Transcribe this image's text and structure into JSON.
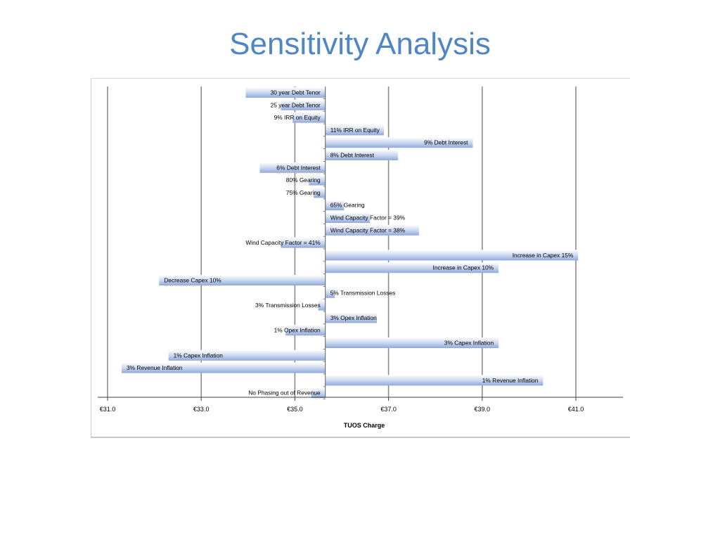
{
  "page": {
    "title": "Sensitivity Analysis"
  },
  "colors": {
    "title": "#4f86c6",
    "bar_dark": "#8fa9d9",
    "bar_light": "#ffffff",
    "gridline": "#8c8c8c",
    "axis": "#404040"
  },
  "chart_data": {
    "type": "bar",
    "orientation": "horizontal",
    "base_value": 35.65,
    "xlabel": "TUOS Charge",
    "xlim": [
      31.0,
      42.0
    ],
    "xticks": [
      "€31.0",
      "€33.0",
      "€35.0",
      "€37.0",
      "€39.0",
      "€41.0"
    ],
    "xtick_values": [
      31,
      33,
      35,
      37,
      39,
      41
    ],
    "grid": true,
    "bars": [
      {
        "label": "30 year Debt Tenor",
        "value": 33.95
      },
      {
        "label": "25 year Debt Tenor",
        "value": 34.7
      },
      {
        "label": "9% IRR on Equity",
        "value": 34.95
      },
      {
        "label": "11% IRR on Equity",
        "value": 36.9
      },
      {
        "label": "9% Debt Interest",
        "value": 38.8
      },
      {
        "label": "8% Debt Interest",
        "value": 37.2
      },
      {
        "label": "6% Debt Interest",
        "value": 34.25
      },
      {
        "label": "80% Gearing",
        "value": 35.3
      },
      {
        "label": "75% Gearing",
        "value": 35.4
      },
      {
        "label": "65% Gearing",
        "value": 36.05
      },
      {
        "label": "Wind Capacity Factor = 39%",
        "value": 36.6
      },
      {
        "label": "Wind Capacity Factor = 38%",
        "value": 37.65
      },
      {
        "label": "Wind Capacity Factor = 41%",
        "value": 34.7
      },
      {
        "label": "Increase in Capex 15%",
        "value": 41.05
      },
      {
        "label": "Increase in Capex 10%",
        "value": 39.35
      },
      {
        "label": "Decrease Capex 10%",
        "value": 32.1
      },
      {
        "label": "5% Transmission Losses",
        "value": 35.85
      },
      {
        "label": "3% Transmission Losses",
        "value": 35.5
      },
      {
        "label": "3% Opex Inflation",
        "value": 36.75
      },
      {
        "label": "1% Opex Inflation",
        "value": 34.8
      },
      {
        "label": "3% Capex Inflation",
        "value": 39.35
      },
      {
        "label": "1% Capex Inflation",
        "value": 32.3
      },
      {
        "label": "3% Revenue Inflation",
        "value": 31.3
      },
      {
        "label": "1% Revenue Inflation",
        "value": 40.3
      },
      {
        "label": "No Phasing out of Revenue",
        "value": 35.35
      }
    ]
  }
}
